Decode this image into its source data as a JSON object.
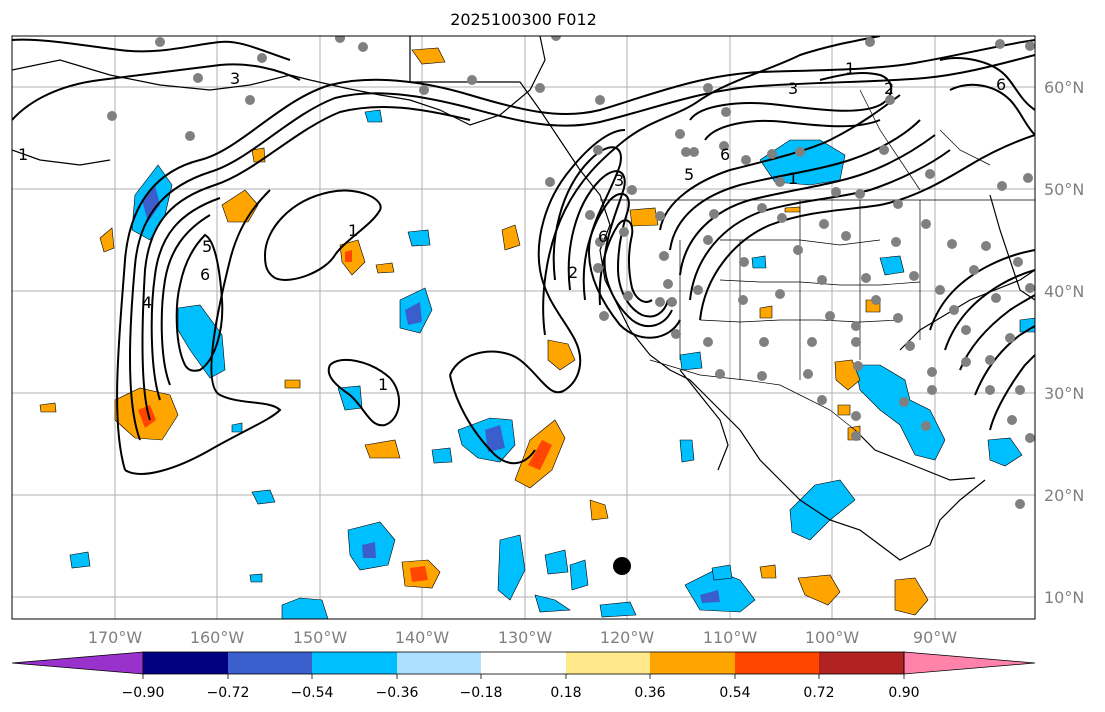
{
  "title": "2025100300 F012",
  "map": {
    "lon_labels": [
      "170°W",
      "160°W",
      "150°W",
      "140°W",
      "130°W",
      "120°W",
      "110°W",
      "100°W",
      "90°W"
    ],
    "lat_labels": [
      "60°N",
      "50°N",
      "40°N",
      "30°N",
      "20°N",
      "10°N"
    ],
    "contour_labels": [
      "1",
      "1",
      "1",
      "1",
      "1",
      "2",
      "3",
      "4",
      "5",
      "6",
      "6",
      "3",
      "6",
      "2",
      "3",
      "5",
      "6"
    ]
  },
  "colorbar": {
    "labels": [
      "−0.90",
      "−0.72",
      "−0.54",
      "−0.36",
      "−0.18",
      "0.18",
      "0.36",
      "0.54",
      "0.72",
      "0.90"
    ],
    "colors": [
      "#9932CC",
      "#000080",
      "#3A5FCD",
      "#00BFFF",
      "#ADDFFF",
      "#FFFFFF",
      "#FFE98A",
      "#FFA500",
      "#FF4500",
      "#B22222",
      "#FF82AB"
    ]
  },
  "colors": {
    "station_dot": "#808080",
    "marker": "#000000",
    "gridline": "#b0b0b0"
  }
}
